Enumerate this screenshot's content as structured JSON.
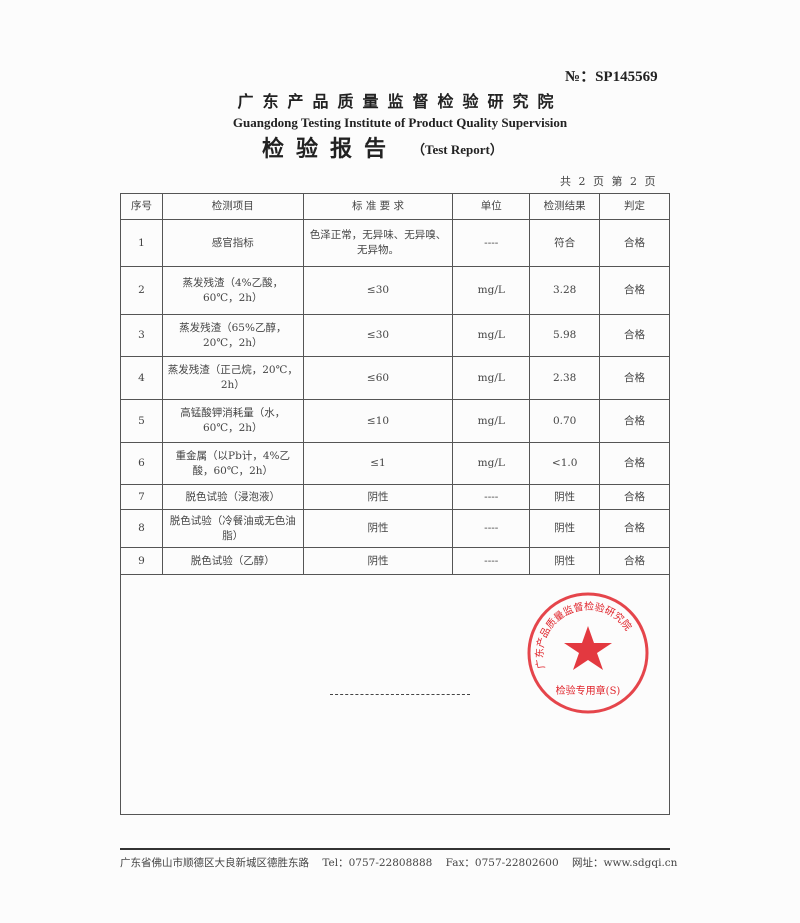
{
  "header": {
    "doc_no": "№：SP145569",
    "org_cn": "广东产品质量监督检验研究院",
    "org_en": "Guangdong Testing Institute of Product Quality Supervision",
    "title_cn": "检验报告",
    "title_en": "（Test Report）",
    "page_info": "共 2 页 第 2 页"
  },
  "table": {
    "columns": [
      "序号",
      "检测项目",
      "标 准 要 求",
      "单位",
      "检测结果",
      "判定"
    ],
    "rows": [
      {
        "no": "1",
        "item": "感官指标",
        "req": "色泽正常，无异味、无异嗅、无异物。",
        "unit": "----",
        "result": "符合",
        "verdict": "合格"
      },
      {
        "no": "2",
        "item": "蒸发残渣（4%乙酸，60℃，2h）",
        "req": "≤30",
        "unit": "mg/L",
        "result": "3.28",
        "verdict": "合格"
      },
      {
        "no": "3",
        "item": "蒸发残渣（65%乙醇，20℃，2h）",
        "req": "≤30",
        "unit": "mg/L",
        "result": "5.98",
        "verdict": "合格"
      },
      {
        "no": "4",
        "item": "蒸发残渣（正己烷，20℃，2h）",
        "req": "≤60",
        "unit": "mg/L",
        "result": "2.38",
        "verdict": "合格"
      },
      {
        "no": "5",
        "item": "高锰酸钾消耗量（水，60℃，2h）",
        "req": "≤10",
        "unit": "mg/L",
        "result": "0.70",
        "verdict": "合格"
      },
      {
        "no": "6",
        "item": "重金属（以Pb计，4%乙酸，60℃，2h）",
        "req": "≤1",
        "unit": "mg/L",
        "result": "<1.0",
        "verdict": "合格"
      },
      {
        "no": "7",
        "item": "脱色试验（浸泡液）",
        "req": "阴性",
        "unit": "----",
        "result": "阴性",
        "verdict": "合格"
      },
      {
        "no": "8",
        "item": "脱色试验（冷餐油或无色油脂）",
        "req": "阴性",
        "unit": "----",
        "result": "阴性",
        "verdict": "合格"
      },
      {
        "no": "9",
        "item": "脱色试验（乙醇）",
        "req": "阴性",
        "unit": "----",
        "result": "阴性",
        "verdict": "合格"
      }
    ]
  },
  "stamp": {
    "ring_text": "广东产品质量监督检验研究院",
    "bottom_text": "检验专用章(S)",
    "color": "#e0242b"
  },
  "footer": {
    "address": "广东省佛山市顺德区大良新城区德胜东路",
    "tel": "Tel：0757-22808888",
    "fax": "Fax：0757-22802600",
    "web": "网址：www.sdgqi.cn"
  }
}
